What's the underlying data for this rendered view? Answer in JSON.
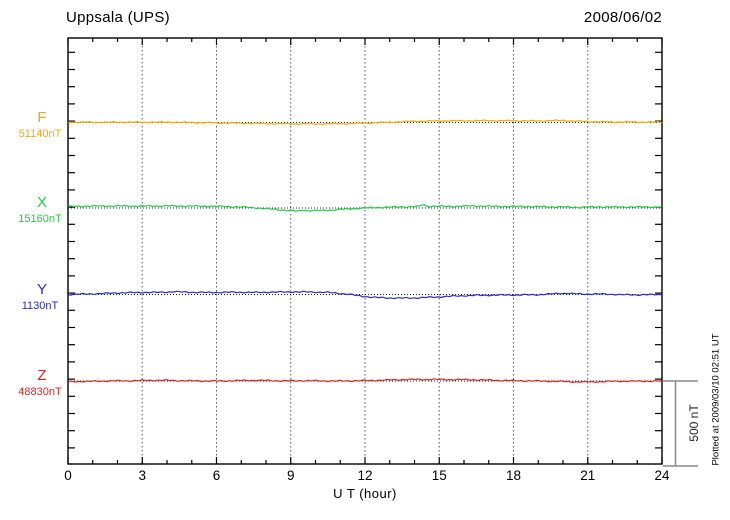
{
  "header": {
    "title": "Uppsala (UPS)",
    "date": "2008/06/02"
  },
  "side": {
    "scale_label": "500 nT",
    "plotted_at": "Plotted at 2009/03/10 02:51 UT"
  },
  "chart_data": {
    "type": "line",
    "title": "Uppsala (UPS)",
    "date": "2008/06/02",
    "xlabel": "U T (hour)",
    "x_range": [
      0,
      24
    ],
    "x_ticks": [
      0,
      3,
      6,
      9,
      12,
      15,
      18,
      21,
      24
    ],
    "x_minor_step_hours": 1,
    "grid_hours": [
      3,
      6,
      9,
      12,
      15,
      18,
      21
    ],
    "grid": "vertical dotted lines at 3-hour intervals; dotted horizontal baseline per component",
    "y_tick_interval_nT": 100,
    "scale_bar": {
      "label": "500 nT",
      "span_nT": 500
    },
    "units_note": "points are [hour UT, deviation in nT from component baseline]",
    "series": [
      {
        "name": "F",
        "baseline_label": "51140nT",
        "baseline_nT": 51140,
        "color": "#F5A800",
        "points": [
          [
            0,
            2
          ],
          [
            1,
            1
          ],
          [
            2,
            2
          ],
          [
            3,
            1
          ],
          [
            4,
            2
          ],
          [
            5,
            0
          ],
          [
            6,
            -2
          ],
          [
            7,
            -4
          ],
          [
            8,
            -6
          ],
          [
            9,
            -8
          ],
          [
            10,
            -8
          ],
          [
            11,
            -7
          ],
          [
            12,
            -4
          ],
          [
            13,
            2
          ],
          [
            14,
            7
          ],
          [
            15,
            9
          ],
          [
            16,
            10
          ],
          [
            17,
            11
          ],
          [
            18,
            10
          ],
          [
            19,
            9
          ],
          [
            20,
            12
          ],
          [
            20.5,
            8
          ],
          [
            21,
            5
          ],
          [
            22,
            3
          ],
          [
            23,
            2
          ],
          [
            24,
            2
          ]
        ]
      },
      {
        "name": "X",
        "baseline_label": "15160nT",
        "baseline_nT": 15160,
        "color": "#22CC44",
        "points": [
          [
            0,
            8
          ],
          [
            0.5,
            10
          ],
          [
            1,
            11
          ],
          [
            2,
            12
          ],
          [
            3,
            11
          ],
          [
            4,
            12
          ],
          [
            5,
            11
          ],
          [
            6,
            10
          ],
          [
            7,
            6
          ],
          [
            7.5,
            2
          ],
          [
            8,
            -4
          ],
          [
            8.5,
            -10
          ],
          [
            9,
            -15
          ],
          [
            9.3,
            -18
          ],
          [
            9.5,
            -12
          ],
          [
            9.7,
            -16
          ],
          [
            10,
            -15
          ],
          [
            10.5,
            -13
          ],
          [
            11,
            -8
          ],
          [
            11.5,
            -4
          ],
          [
            12,
            0
          ],
          [
            12.5,
            3
          ],
          [
            13,
            5
          ],
          [
            13.5,
            7
          ],
          [
            14,
            8
          ],
          [
            14.2,
            10
          ],
          [
            14.35,
            22
          ],
          [
            14.5,
            10
          ],
          [
            15,
            10
          ],
          [
            15.5,
            9
          ],
          [
            16,
            11
          ],
          [
            16.5,
            12
          ],
          [
            17,
            10
          ],
          [
            17.5,
            9
          ],
          [
            18,
            9
          ],
          [
            19,
            8
          ],
          [
            20,
            6
          ],
          [
            20.5,
            4
          ],
          [
            21,
            5
          ],
          [
            21.5,
            7
          ],
          [
            22,
            6
          ],
          [
            23,
            6
          ],
          [
            24,
            6
          ]
        ]
      },
      {
        "name": "Y",
        "baseline_label": "1130nT",
        "baseline_nT": 1130,
        "color": "#2A2ACC",
        "points": [
          [
            0,
            0
          ],
          [
            0.5,
            2
          ],
          [
            1,
            4
          ],
          [
            1.5,
            6
          ],
          [
            2,
            9
          ],
          [
            2.5,
            11
          ],
          [
            3,
            12
          ],
          [
            3.5,
            12
          ],
          [
            4,
            14
          ],
          [
            4.3,
            17
          ],
          [
            4.6,
            14
          ],
          [
            5,
            13
          ],
          [
            5.5,
            12
          ],
          [
            6,
            12
          ],
          [
            6.5,
            13
          ],
          [
            7,
            13
          ],
          [
            7.5,
            12
          ],
          [
            8,
            13
          ],
          [
            8.5,
            14
          ],
          [
            9,
            15
          ],
          [
            9.5,
            15
          ],
          [
            10,
            14
          ],
          [
            10.5,
            12
          ],
          [
            11,
            6
          ],
          [
            11.3,
            2
          ],
          [
            11.6,
            -4
          ],
          [
            12,
            -12
          ],
          [
            12.5,
            -18
          ],
          [
            13,
            -20
          ],
          [
            13.5,
            -21
          ],
          [
            14,
            -20
          ],
          [
            14.5,
            -17
          ],
          [
            15,
            -14
          ],
          [
            15.5,
            -10
          ],
          [
            16,
            -7
          ],
          [
            16.5,
            -5
          ],
          [
            17,
            -4
          ],
          [
            17.5,
            -3
          ],
          [
            18,
            -3
          ],
          [
            18.5,
            -2
          ],
          [
            19,
            -1
          ],
          [
            19.5,
            3
          ],
          [
            19.8,
            6
          ],
          [
            20.2,
            7
          ],
          [
            20.5,
            4
          ],
          [
            21,
            2
          ],
          [
            21.5,
            3
          ],
          [
            22,
            1
          ],
          [
            22.5,
            -2
          ],
          [
            23,
            -2
          ],
          [
            23.5,
            -1
          ],
          [
            24,
            0
          ]
        ]
      },
      {
        "name": "Z",
        "baseline_label": "48830nT",
        "baseline_nT": 48830,
        "color": "#DD2222",
        "points": [
          [
            0,
            -4
          ],
          [
            0.5,
            -3
          ],
          [
            1,
            -2
          ],
          [
            1.5,
            0
          ],
          [
            2,
            1
          ],
          [
            2.5,
            1
          ],
          [
            3,
            3
          ],
          [
            3.5,
            4
          ],
          [
            4,
            4
          ],
          [
            4.5,
            2
          ],
          [
            5,
            1
          ],
          [
            5.5,
            0
          ],
          [
            6,
            0
          ],
          [
            6.5,
            1
          ],
          [
            7,
            3
          ],
          [
            7.5,
            4
          ],
          [
            8,
            3
          ],
          [
            8.5,
            1
          ],
          [
            9,
            1
          ],
          [
            9.5,
            2
          ],
          [
            10,
            1
          ],
          [
            10.5,
            0
          ],
          [
            11,
            0
          ],
          [
            11.5,
            1
          ],
          [
            12,
            2
          ],
          [
            12.5,
            4
          ],
          [
            13,
            6
          ],
          [
            13.5,
            8
          ],
          [
            14,
            9
          ],
          [
            14.5,
            9
          ],
          [
            15,
            9
          ],
          [
            15.5,
            8
          ],
          [
            16,
            8
          ],
          [
            16.5,
            7
          ],
          [
            17,
            5
          ],
          [
            17.5,
            3
          ],
          [
            18,
            2
          ],
          [
            18.5,
            1
          ],
          [
            19,
            0
          ],
          [
            19.5,
            -1
          ],
          [
            20,
            -3
          ],
          [
            20.5,
            -5
          ],
          [
            21,
            -6
          ],
          [
            21.5,
            -4
          ],
          [
            22,
            -2
          ],
          [
            22.5,
            -1
          ],
          [
            23,
            -1
          ],
          [
            23.5,
            -1
          ],
          [
            24,
            0
          ]
        ]
      }
    ]
  }
}
